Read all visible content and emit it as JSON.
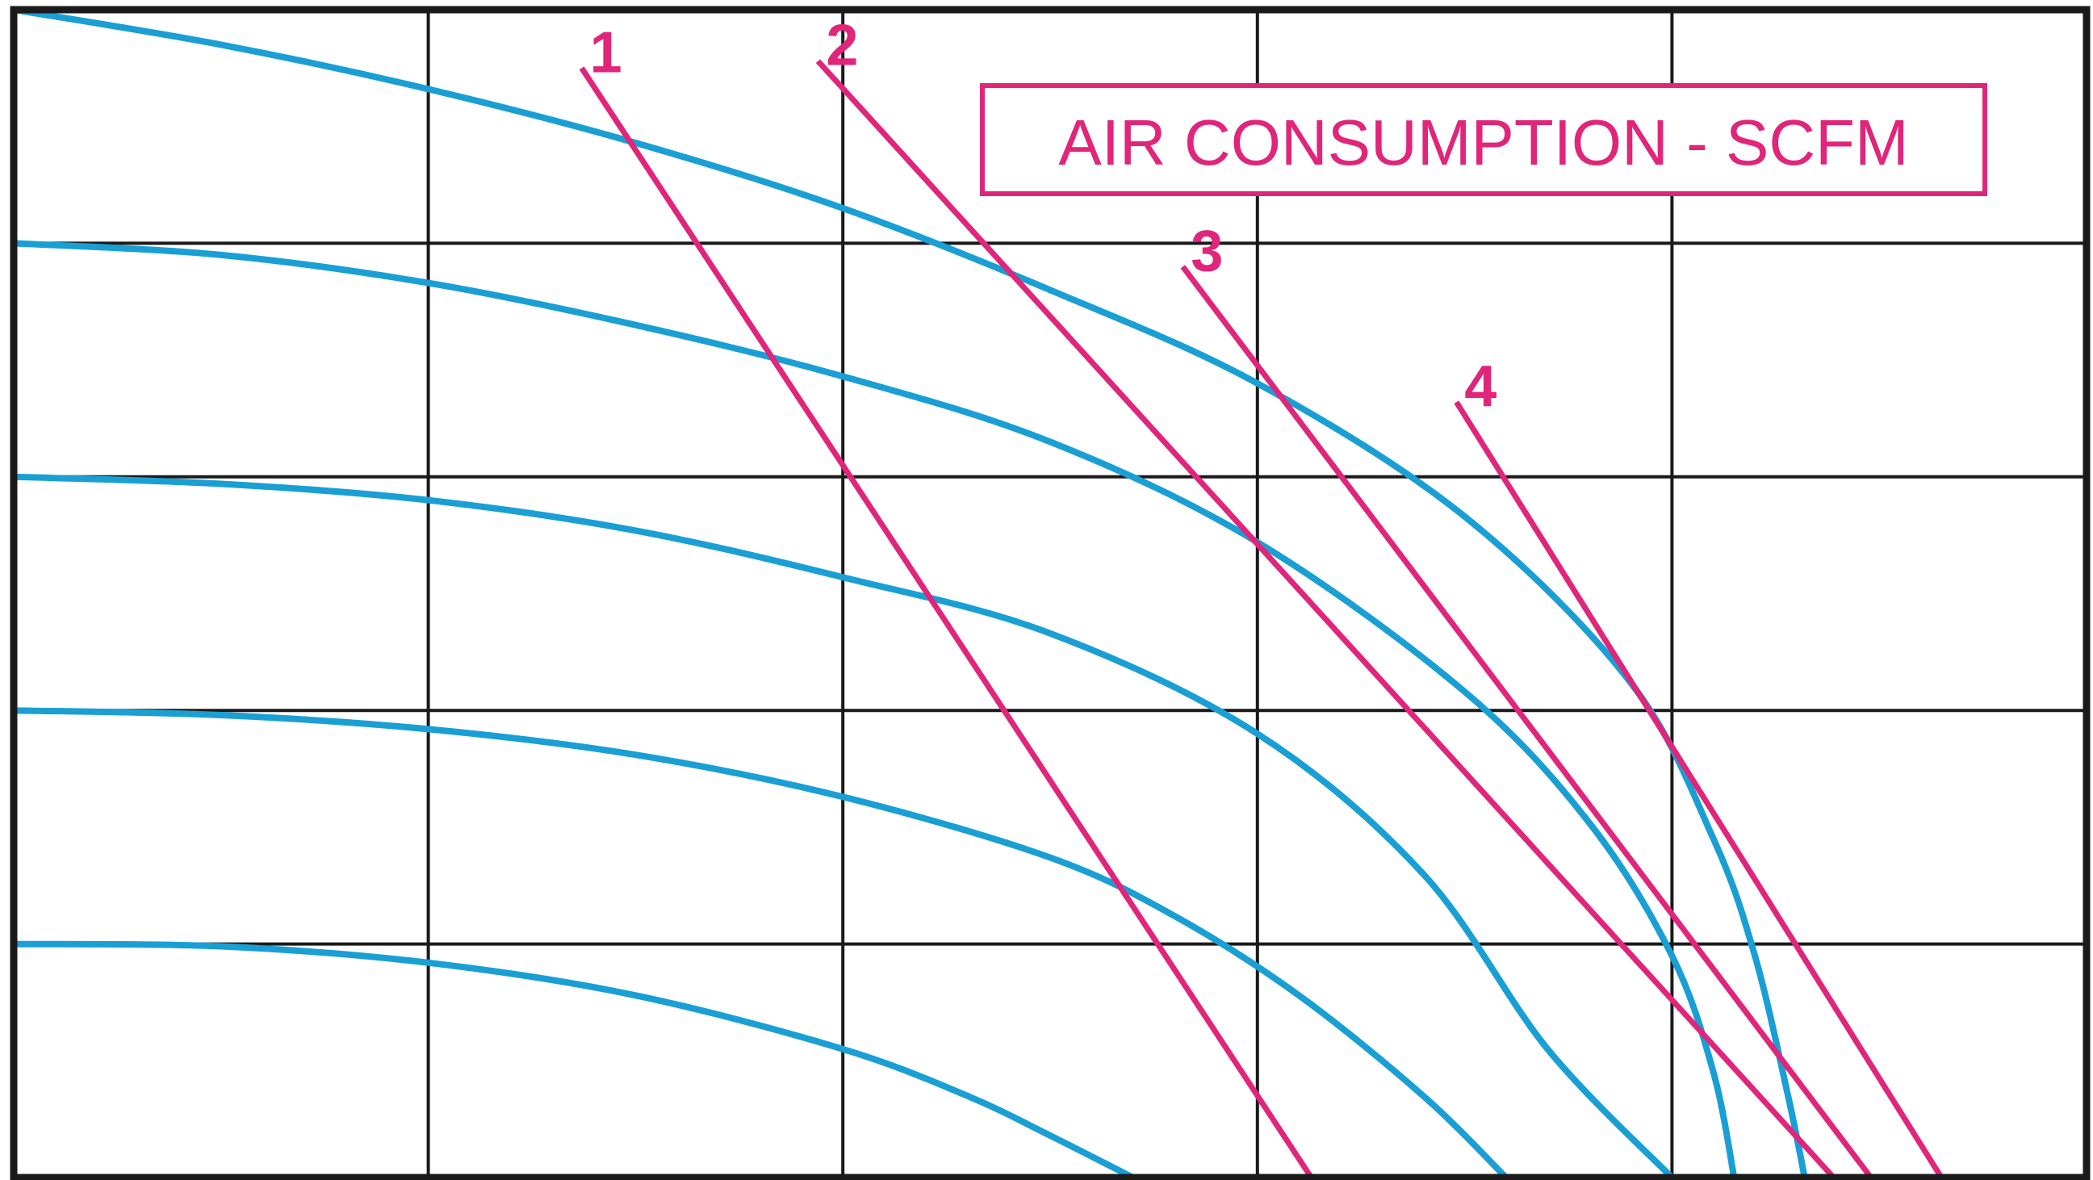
{
  "chart_data": {
    "type": "line",
    "title": "AIR CONSUMPTION - SCFM",
    "xlabel": "",
    "ylabel": "",
    "xlim": [
      0,
      5
    ],
    "ylim": [
      0,
      5
    ],
    "grid": true,
    "colors": {
      "performance": "#1a9fd4",
      "air_consumption": "#e0257a",
      "grid": "#1a1a1a"
    },
    "performance_curves": [
      {
        "points": [
          [
            0,
            5.0
          ],
          [
            0.5,
            4.85
          ],
          [
            1.0,
            4.66
          ],
          [
            1.5,
            4.43
          ],
          [
            2.0,
            4.15
          ],
          [
            2.5,
            3.8
          ],
          [
            3.0,
            3.4
          ],
          [
            3.5,
            2.83
          ],
          [
            3.9,
            2.12
          ],
          [
            4.1,
            1.45
          ],
          [
            4.2,
            0.95
          ],
          [
            4.28,
            0.35
          ],
          [
            4.32,
            0.0
          ]
        ]
      },
      {
        "points": [
          [
            0,
            4.0
          ],
          [
            0.5,
            3.95
          ],
          [
            1.0,
            3.83
          ],
          [
            1.5,
            3.65
          ],
          [
            2.0,
            3.43
          ],
          [
            2.5,
            3.15
          ],
          [
            3.0,
            2.72
          ],
          [
            3.5,
            2.08
          ],
          [
            3.8,
            1.52
          ],
          [
            4.0,
            0.95
          ],
          [
            4.1,
            0.45
          ],
          [
            4.15,
            0.0
          ]
        ]
      },
      {
        "points": [
          [
            0,
            3.0
          ],
          [
            0.5,
            2.97
          ],
          [
            1.0,
            2.9
          ],
          [
            1.5,
            2.77
          ],
          [
            2.0,
            2.57
          ],
          [
            2.5,
            2.33
          ],
          [
            3.0,
            1.9
          ],
          [
            3.4,
            1.3
          ],
          [
            3.7,
            0.55
          ],
          [
            4.0,
            0.0
          ]
        ]
      },
      {
        "points": [
          [
            0,
            2.0
          ],
          [
            0.5,
            1.98
          ],
          [
            1.0,
            1.92
          ],
          [
            1.5,
            1.81
          ],
          [
            2.0,
            1.63
          ],
          [
            2.5,
            1.37
          ],
          [
            2.8,
            1.12
          ],
          [
            3.1,
            0.78
          ],
          [
            3.4,
            0.35
          ],
          [
            3.6,
            0.0
          ]
        ]
      },
      {
        "points": [
          [
            0,
            1.0
          ],
          [
            0.5,
            0.99
          ],
          [
            1.0,
            0.92
          ],
          [
            1.5,
            0.78
          ],
          [
            2.0,
            0.55
          ],
          [
            2.3,
            0.35
          ],
          [
            2.5,
            0.18
          ],
          [
            2.7,
            0.0
          ]
        ]
      }
    ],
    "consumption_lines": [
      {
        "label": "1",
        "points": [
          [
            1.37,
            4.75
          ],
          [
            3.13,
            0.0
          ]
        ]
      },
      {
        "label": "2",
        "points": [
          [
            1.94,
            4.78
          ],
          [
            4.39,
            0.0
          ]
        ]
      },
      {
        "label": "3",
        "points": [
          [
            2.82,
            3.9
          ],
          [
            4.48,
            0.0
          ]
        ]
      },
      {
        "label": "4",
        "points": [
          [
            3.48,
            3.32
          ],
          [
            4.65,
            0.0
          ]
        ]
      }
    ]
  }
}
